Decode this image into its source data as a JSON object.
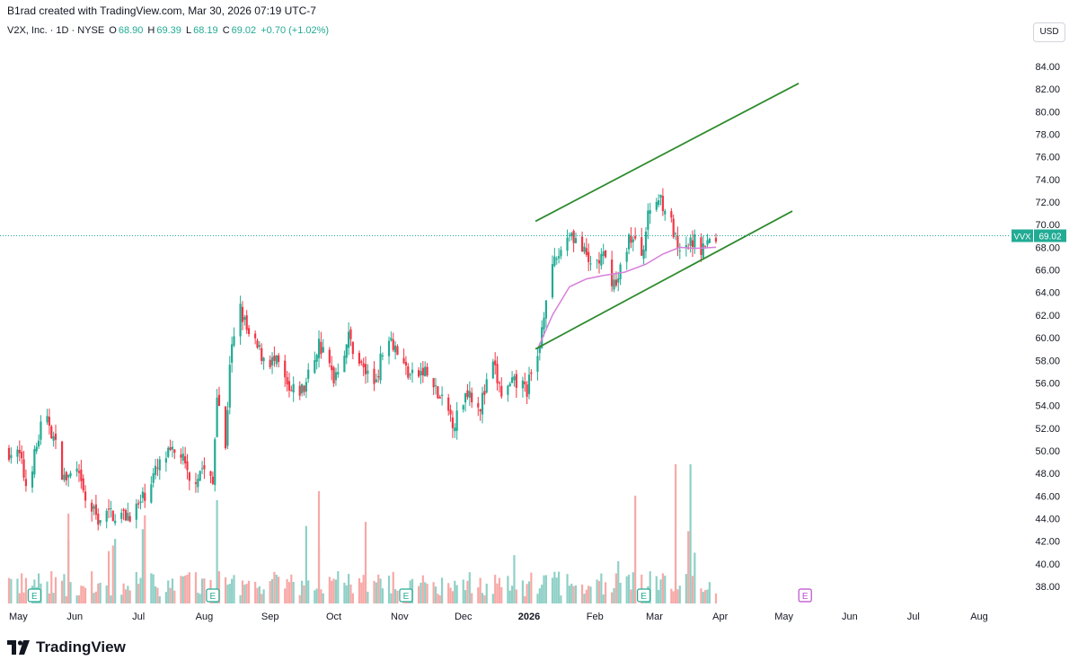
{
  "header": {
    "created_by": "B1rad created with TradingView.com, Mar 30, 2026 07:19 UTC-7",
    "symbol_desc": "V2X, Inc. · 1D · NYSE",
    "o_label": "O",
    "o_value": "68.90",
    "h_label": "H",
    "h_value": "69.39",
    "l_label": "L",
    "l_value": "68.19",
    "c_label": "C",
    "c_value": "69.02",
    "change": "+0.70 (+1.02%)",
    "currency": "USD"
  },
  "price_tag": {
    "ticker": "VVX",
    "price": "69.02"
  },
  "footer": {
    "brand": "TradingView"
  },
  "colors": {
    "up": "#22ab94",
    "down": "#f23645",
    "up_vol": "#8fd0c6",
    "down_vol": "#f7a9a7",
    "channel": "#2e8b2e",
    "ma": "#d77fdb",
    "earnings": "#22ab94",
    "earnings_future": "#b84ec9"
  },
  "chart_data": {
    "type": "candlestick",
    "symbol": "VVX",
    "y_ticks": [
      "38.00",
      "40.00",
      "42.00",
      "44.00",
      "46.00",
      "48.00",
      "50.00",
      "52.00",
      "54.00",
      "56.00",
      "58.00",
      "60.00",
      "62.00",
      "64.00",
      "66.00",
      "68.00",
      "70.00",
      "72.00",
      "74.00",
      "76.00",
      "78.00",
      "80.00",
      "82.00",
      "84.00"
    ],
    "ylim": [
      36.5,
      85.5
    ],
    "x_labels": [
      "May",
      "Jun",
      "Jul",
      "Aug",
      "Sep",
      "Oct",
      "Nov",
      "Dec",
      "2026",
      "Feb",
      "Mar",
      "Apr",
      "May",
      "Jun",
      "Jul",
      "Aug"
    ],
    "x_label_dates": [
      "2025-05-01",
      "2025-06-01",
      "2025-07-01",
      "2025-08-01",
      "2025-09-01",
      "2025-10-01",
      "2025-11-01",
      "2025-12-01",
      "2026-01-01",
      "2026-02-01",
      "2026-03-01",
      "2026-04-01",
      "2026-05-01",
      "2026-06-01",
      "2026-07-01",
      "2026-08-01"
    ],
    "price_path": [
      [
        "2025-05-01",
        50.0
      ],
      [
        "2025-05-06",
        49.5
      ],
      [
        "2025-05-09",
        47.0
      ],
      [
        "2025-05-13",
        49.5
      ],
      [
        "2025-05-16",
        52.0
      ],
      [
        "2025-05-20",
        52.5
      ],
      [
        "2025-05-27",
        47.5
      ],
      [
        "2025-06-02",
        48.0
      ],
      [
        "2025-06-06",
        45.5
      ],
      [
        "2025-06-12",
        44.0
      ],
      [
        "2025-06-18",
        44.5
      ],
      [
        "2025-06-24",
        44.2
      ],
      [
        "2025-07-01",
        45.0
      ],
      [
        "2025-07-07",
        47.5
      ],
      [
        "2025-07-14",
        49.5
      ],
      [
        "2025-07-21",
        49.8
      ],
      [
        "2025-07-25",
        47.0
      ],
      [
        "2025-07-31",
        48.5
      ],
      [
        "2025-08-05",
        47.0
      ],
      [
        "2025-08-07",
        55.5
      ],
      [
        "2025-08-11",
        50.0
      ],
      [
        "2025-08-13",
        58.0
      ],
      [
        "2025-08-18",
        62.5
      ],
      [
        "2025-08-22",
        60.0
      ],
      [
        "2025-08-28",
        58.5
      ],
      [
        "2025-09-05",
        57.5
      ],
      [
        "2025-09-10",
        55.0
      ],
      [
        "2025-09-17",
        55.5
      ],
      [
        "2025-09-24",
        59.5
      ],
      [
        "2025-10-01",
        56.5
      ],
      [
        "2025-10-08",
        60.0
      ],
      [
        "2025-10-14",
        57.5
      ],
      [
        "2025-10-20",
        56.0
      ],
      [
        "2025-10-27",
        60.5
      ],
      [
        "2025-11-03",
        57.5
      ],
      [
        "2025-11-07",
        56.5
      ],
      [
        "2025-11-13",
        57.0
      ],
      [
        "2025-11-20",
        54.5
      ],
      [
        "2025-11-27",
        52.5
      ],
      [
        "2025-12-03",
        55.5
      ],
      [
        "2025-12-09",
        54.0
      ],
      [
        "2025-12-15",
        57.5
      ],
      [
        "2025-12-19",
        55.0
      ],
      [
        "2025-12-26",
        56.0
      ],
      [
        "2025-12-31",
        55.5
      ],
      [
        "2026-01-05",
        58.0
      ],
      [
        "2026-01-09",
        64.0
      ],
      [
        "2026-01-14",
        67.0
      ],
      [
        "2026-01-20",
        69.5
      ],
      [
        "2026-01-24",
        68.5
      ],
      [
        "2026-01-29",
        66.5
      ],
      [
        "2026-02-05",
        67.0
      ],
      [
        "2026-02-11",
        64.5
      ],
      [
        "2026-02-17",
        69.0
      ],
      [
        "2026-02-23",
        67.5
      ],
      [
        "2026-02-27",
        71.5
      ],
      [
        "2026-03-04",
        72.5
      ],
      [
        "2026-03-09",
        70.0
      ],
      [
        "2026-03-13",
        67.0
      ],
      [
        "2026-03-19",
        68.5
      ],
      [
        "2026-03-24",
        68.0
      ],
      [
        "2026-03-30",
        69.02
      ]
    ],
    "moving_average": [
      [
        "2026-01-05",
        59.0
      ],
      [
        "2026-01-12",
        62.0
      ],
      [
        "2026-01-20",
        64.5
      ],
      [
        "2026-01-28",
        65.2
      ],
      [
        "2026-02-05",
        65.5
      ],
      [
        "2026-02-15",
        65.8
      ],
      [
        "2026-02-25",
        66.5
      ],
      [
        "2026-03-05",
        67.4
      ],
      [
        "2026-03-13",
        68.0
      ],
      [
        "2026-03-20",
        67.9
      ],
      [
        "2026-03-30",
        68.0
      ]
    ],
    "channel_upper": [
      [
        "2026-01-04",
        70.3
      ],
      [
        "2026-05-08",
        82.5
      ]
    ],
    "channel_lower": [
      [
        "2026-01-04",
        59.0
      ],
      [
        "2026-05-05",
        71.2
      ]
    ],
    "last_price": 69.02,
    "earnings_dates": [
      "2025-05-13",
      "2025-08-05",
      "2025-11-04",
      "2026-02-24"
    ],
    "earnings_future_date": "2026-05-11",
    "grid": false
  }
}
